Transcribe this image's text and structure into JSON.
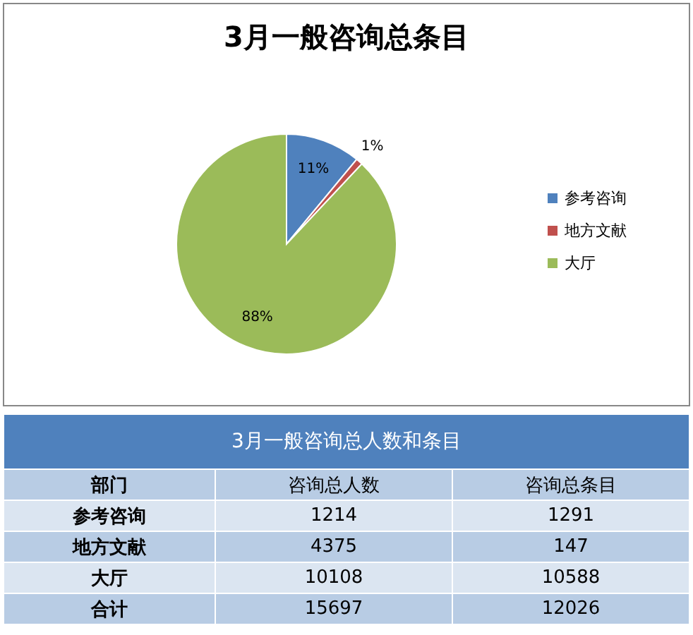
{
  "chart_data": [
    {
      "type": "pie",
      "title": "3月一般咨询总条目",
      "categories": [
        "参考咨询",
        "地方文献",
        "大厅"
      ],
      "values": [
        11,
        1,
        88
      ],
      "value_labels": [
        "11%",
        "1%",
        "88%"
      ],
      "colors": [
        "#4f81bd",
        "#c0504d",
        "#9bbb59"
      ],
      "legend": "right"
    },
    {
      "type": "heatmap",
      "data_labels": true,
      "title": "3月一般咨询总人数和条目",
      "ylabel": "部门",
      "categories": [
        "咨询总人数",
        "咨询总条目"
      ],
      "y_categories": [
        "参考咨询",
        "地方文献",
        "大厅",
        "合计"
      ],
      "cells": [
        [
          1214,
          1291
        ],
        [
          4375,
          147
        ],
        [
          10108,
          10588
        ],
        [
          15697,
          12026
        ]
      ]
    }
  ]
}
